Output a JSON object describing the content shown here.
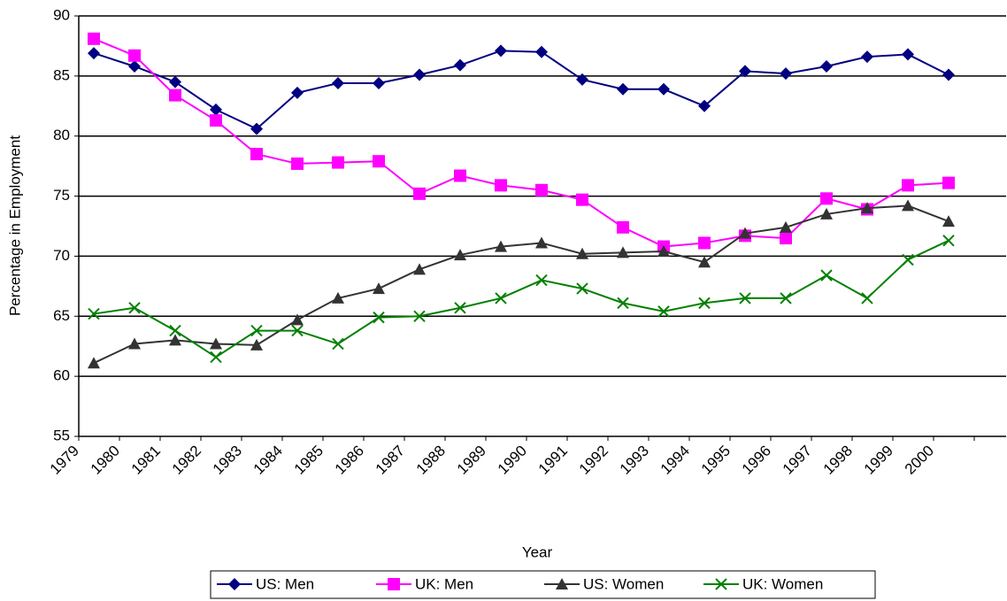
{
  "chart_data": {
    "type": "line",
    "x_label": "Year",
    "y_label": "Percentage in Employment",
    "categories": [
      "1979",
      "1980",
      "1981",
      "1982",
      "1983",
      "1984",
      "1985",
      "1986",
      "1987",
      "1988",
      "1989",
      "1990",
      "1991",
      "1992",
      "1993",
      "1994",
      "1995",
      "1996",
      "1997",
      "1998",
      "1999",
      "2000"
    ],
    "series": [
      {
        "name": "US: Men",
        "color": "#000080",
        "marker": "diamond",
        "values": [
          86.9,
          85.8,
          84.5,
          82.2,
          80.6,
          83.6,
          84.4,
          84.4,
          85.1,
          85.9,
          87.1,
          87.0,
          84.7,
          83.9,
          83.9,
          82.5,
          85.4,
          85.2,
          85.8,
          86.6,
          86.8,
          85.1
        ]
      },
      {
        "name": "UK: Men",
        "color": "#ff00ff",
        "marker": "square",
        "values": [
          88.1,
          86.7,
          83.4,
          81.3,
          78.5,
          77.7,
          77.8,
          77.9,
          75.2,
          76.7,
          75.9,
          75.5,
          74.7,
          72.4,
          70.8,
          71.1,
          71.7,
          71.5,
          74.8,
          73.9,
          75.9,
          76.1
        ]
      },
      {
        "name": "US: Women",
        "color": "#333333",
        "marker": "triangle",
        "values": [
          61.1,
          62.7,
          63.0,
          62.7,
          62.6,
          64.7,
          66.5,
          67.3,
          68.9,
          70.1,
          70.8,
          71.1,
          70.2,
          70.3,
          70.4,
          69.5,
          71.9,
          72.4,
          73.5,
          74.0,
          74.2,
          72.9
        ]
      },
      {
        "name": "UK: Women",
        "color": "#008000",
        "marker": "x",
        "values": [
          65.2,
          65.7,
          63.8,
          61.6,
          63.8,
          63.8,
          62.7,
          64.9,
          65.0,
          65.7,
          66.5,
          68.0,
          67.3,
          66.1,
          65.4,
          66.1,
          66.5,
          66.5,
          68.4,
          66.5,
          69.7,
          71.3
        ]
      }
    ],
    "ylim": [
      55,
      90
    ],
    "yticks": [
      55,
      60,
      65,
      70,
      75,
      80,
      85,
      90
    ],
    "grid": true,
    "legend": "bottom"
  }
}
